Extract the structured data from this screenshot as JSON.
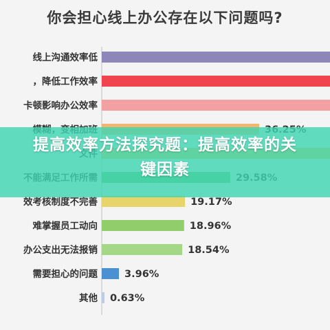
{
  "title": "你会担心线上办公存在以下问题吗?",
  "banner": {
    "text": "提高效率方法探究题：提高效率的关键因素"
  },
  "colors": {
    "axis": "#bfbfbf"
  },
  "chart_data": {
    "type": "bar",
    "orientation": "horizontal",
    "xlim": [
      0,
      100
    ],
    "grid": false,
    "categories": [
      "线上沟通效率低",
      "，降低工作效率",
      "卡顿影响办公效率",
      "模糊，变相加班",
      "文件",
      "不能满足工作所需",
      "效考核制度不完善",
      "难掌握员工动向",
      "办公支出无法报销",
      "需要担心的问题",
      "其他"
    ],
    "values": [
      null,
      null,
      null,
      36.25,
      null,
      29.58,
      19.17,
      18.96,
      18.54,
      3.96,
      0.63
    ],
    "value_labels": [
      "",
      "",
      "",
      "36.25%",
      "",
      "29.58%",
      "19.17%",
      "18.96%",
      "18.54%",
      "3.96%",
      "0.63%"
    ],
    "bar_colors": [
      "#8d87b9",
      "#f0444f",
      "#f3a0a2",
      "#f2b570",
      "#f0c55c",
      "#67c464",
      "#e7d46a",
      "#92cd6b",
      "#a4d887",
      "#4b91d2",
      "#b9cde6"
    ]
  }
}
